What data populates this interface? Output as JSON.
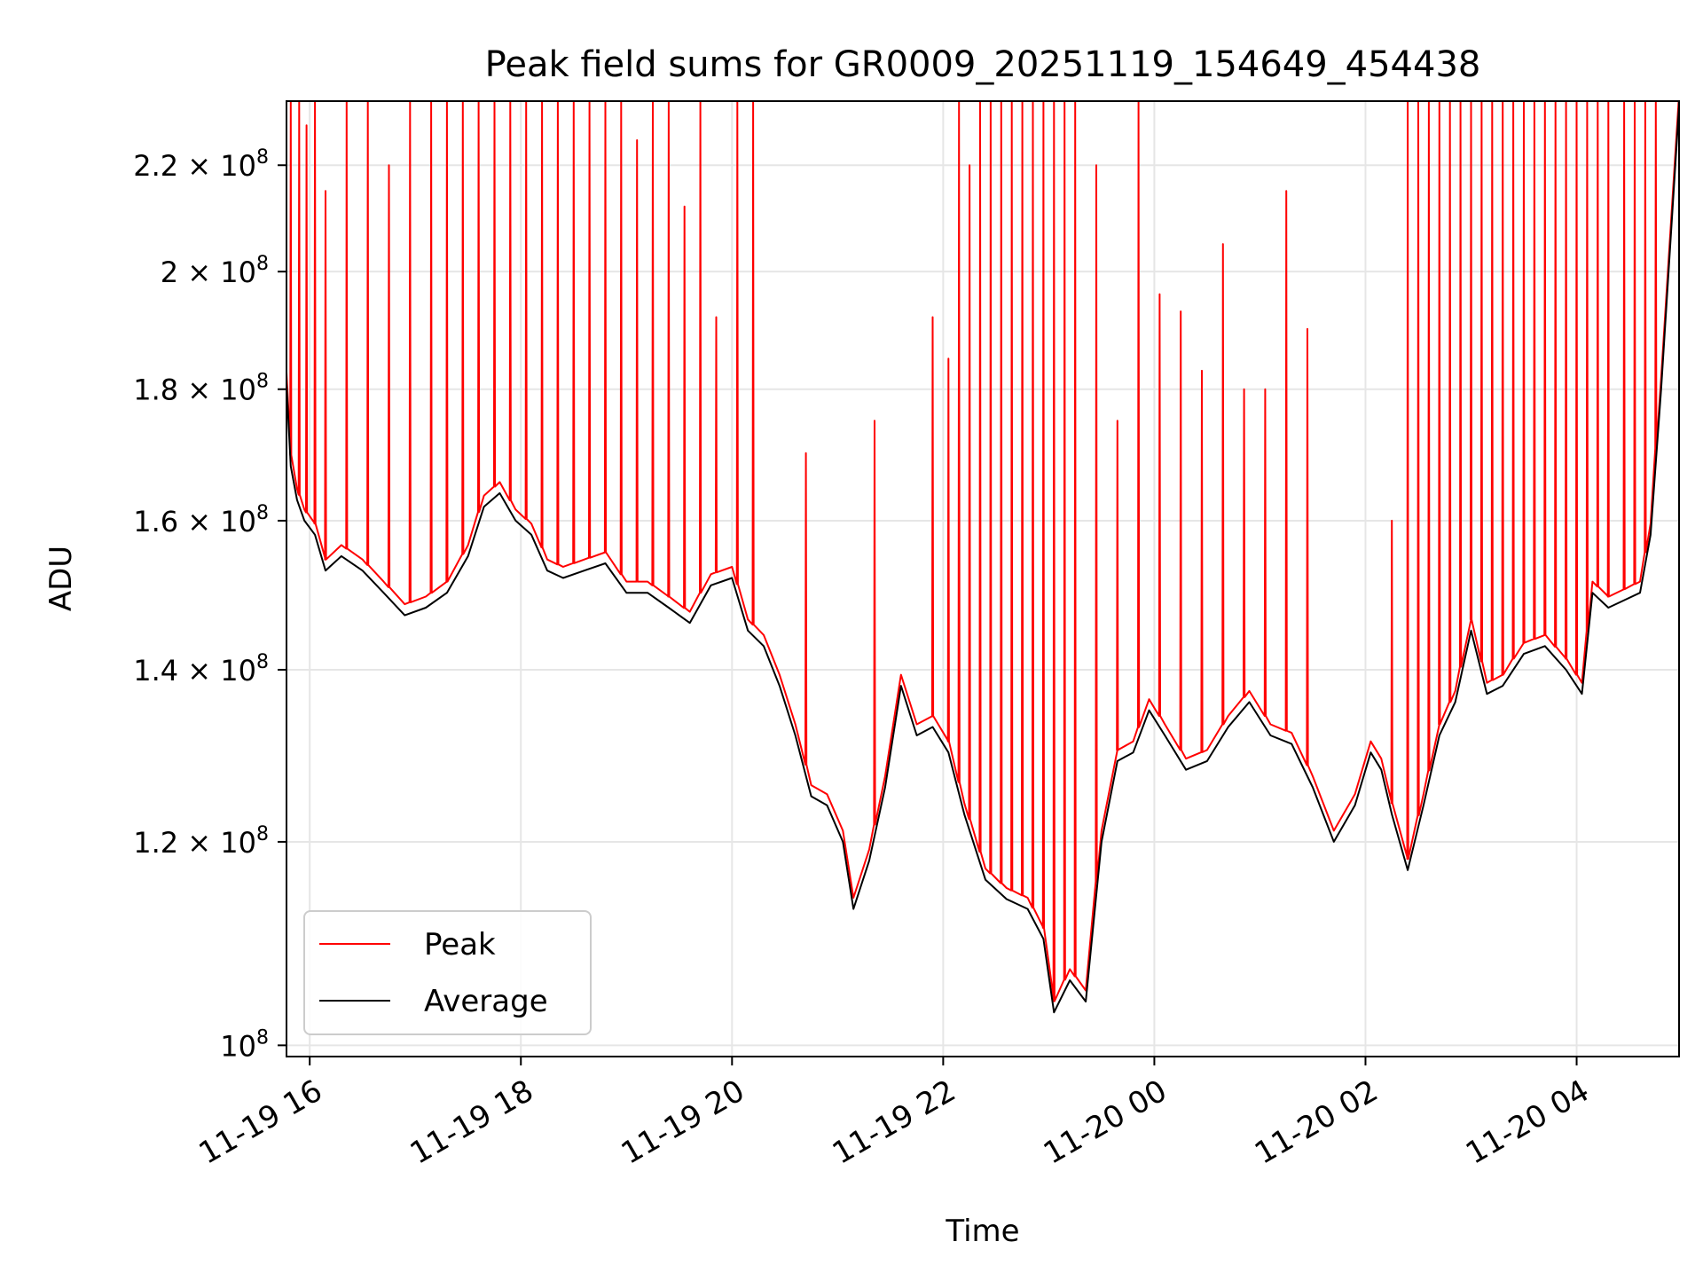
{
  "chart_data": {
    "type": "line",
    "title": "Peak field sums for GR0009_20251119_154649_454438",
    "xlabel": "Time",
    "ylabel": "ADU",
    "yscale": "log",
    "grid": true,
    "xlim_hours": [
      15.78,
      28.97
    ],
    "ylim": [
      99000000,
      233000000
    ],
    "x_ticks": [
      {
        "hour": 16,
        "label": "11-19 16"
      },
      {
        "hour": 18,
        "label": "11-19 18"
      },
      {
        "hour": 20,
        "label": "11-19 20"
      },
      {
        "hour": 22,
        "label": "11-19 22"
      },
      {
        "hour": 24,
        "label": "11-20 00"
      },
      {
        "hour": 26,
        "label": "11-20 02"
      },
      {
        "hour": 28,
        "label": "11-20 04"
      }
    ],
    "y_ticks": [
      {
        "value": 100000000,
        "mantissa": "",
        "exp": "8",
        "label": "10^8"
      },
      {
        "value": 120000000,
        "mantissa": "1.2",
        "exp": "8",
        "label": "1.2 × 10^8"
      },
      {
        "value": 140000000,
        "mantissa": "1.4",
        "exp": "8",
        "label": "1.4 × 10^8"
      },
      {
        "value": 160000000,
        "mantissa": "1.6",
        "exp": "8",
        "label": "1.6 × 10^8"
      },
      {
        "value": 180000000,
        "mantissa": "1.8",
        "exp": "8",
        "label": "1.8 × 10^8"
      },
      {
        "value": 200000000,
        "mantissa": "2",
        "exp": "8",
        "label": "2 × 10^8"
      },
      {
        "value": 220000000,
        "mantissa": "2.2",
        "exp": "8",
        "label": "2.2 × 10^8"
      }
    ],
    "legend": {
      "placement": "lower-left",
      "entries": [
        {
          "name": "Peak",
          "color": "#ff0000"
        },
        {
          "name": "Average",
          "color": "#000000"
        }
      ]
    },
    "series": [
      {
        "name": "Average",
        "color": "#000000",
        "x_hours": [
          15.78,
          15.82,
          15.88,
          15.95,
          16.05,
          16.15,
          16.3,
          16.5,
          16.7,
          16.9,
          17.1,
          17.3,
          17.5,
          17.65,
          17.8,
          17.95,
          18.1,
          18.25,
          18.4,
          18.6,
          18.8,
          19.0,
          19.2,
          19.4,
          19.6,
          19.8,
          20.0,
          20.15,
          20.3,
          20.45,
          20.6,
          20.75,
          20.9,
          21.05,
          21.15,
          21.3,
          21.45,
          21.6,
          21.75,
          21.9,
          22.05,
          22.2,
          22.4,
          22.6,
          22.8,
          22.95,
          23.05,
          23.2,
          23.35,
          23.5,
          23.65,
          23.8,
          23.95,
          24.1,
          24.3,
          24.5,
          24.7,
          24.9,
          25.1,
          25.3,
          25.5,
          25.7,
          25.9,
          26.05,
          26.15,
          26.25,
          26.4,
          26.55,
          26.7,
          26.85,
          27.0,
          27.15,
          27.3,
          27.5,
          27.7,
          27.9,
          28.05,
          28.15,
          28.3,
          28.45,
          28.6,
          28.7,
          28.8,
          28.97
        ],
        "y": [
          181000000,
          168000000,
          163000000,
          160000000,
          158000000,
          153000000,
          155000000,
          153000000,
          150000000,
          147000000,
          148000000,
          150000000,
          155000000,
          162000000,
          164000000,
          160000000,
          158000000,
          153000000,
          152000000,
          153000000,
          154000000,
          150000000,
          150000000,
          148000000,
          146000000,
          151000000,
          152000000,
          145000000,
          143000000,
          138000000,
          132000000,
          125000000,
          124000000,
          120000000,
          113000000,
          118000000,
          126000000,
          138000000,
          132000000,
          133000000,
          130000000,
          123000000,
          116000000,
          114000000,
          113000000,
          110000000,
          103000000,
          106000000,
          104000000,
          120000000,
          129000000,
          130000000,
          135000000,
          132000000,
          128000000,
          129000000,
          133000000,
          136000000,
          132000000,
          131000000,
          126000000,
          120000000,
          124000000,
          130000000,
          128000000,
          123000000,
          117000000,
          124000000,
          132000000,
          136000000,
          145000000,
          137000000,
          138000000,
          142000000,
          143000000,
          140000000,
          137000000,
          150000000,
          148000000,
          149000000,
          150000000,
          158000000,
          180000000,
          232000000
        ]
      },
      {
        "name": "Peak",
        "color": "#ff0000",
        "x_hours": [
          15.82,
          15.9,
          15.97,
          16.05,
          16.15,
          16.35,
          16.55,
          16.75,
          16.95,
          17.15,
          17.3,
          17.45,
          17.6,
          17.75,
          17.9,
          18.05,
          18.2,
          18.35,
          18.5,
          18.65,
          18.8,
          18.95,
          19.1,
          19.25,
          19.4,
          19.55,
          19.7,
          19.85,
          20.05,
          20.2,
          20.7,
          21.35,
          21.9,
          22.05,
          22.15,
          22.25,
          22.35,
          22.45,
          22.55,
          22.65,
          22.75,
          22.85,
          22.95,
          23.05,
          23.15,
          23.25,
          23.45,
          23.65,
          23.85,
          24.05,
          24.25,
          24.45,
          24.65,
          24.85,
          25.05,
          25.25,
          25.45,
          26.25,
          26.4,
          26.5,
          26.6,
          26.7,
          26.8,
          26.9,
          27.0,
          27.1,
          27.2,
          27.3,
          27.4,
          27.5,
          27.6,
          27.7,
          27.8,
          27.9,
          28.0,
          28.1,
          28.2,
          28.3,
          28.45,
          28.55,
          28.65,
          28.75
        ],
        "y": [
          233000000,
          233000000,
          228000000,
          233000000,
          215000000,
          233000000,
          233000000,
          220000000,
          233000000,
          233000000,
          233000000,
          233000000,
          233000000,
          233000000,
          233000000,
          233000000,
          233000000,
          233000000,
          233000000,
          233000000,
          233000000,
          233000000,
          225000000,
          233000000,
          233000000,
          212000000,
          233000000,
          192000000,
          233000000,
          233000000,
          170000000,
          175000000,
          192000000,
          185000000,
          233000000,
          220000000,
          233000000,
          233000000,
          233000000,
          233000000,
          233000000,
          233000000,
          233000000,
          233000000,
          233000000,
          233000000,
          220000000,
          175000000,
          233000000,
          196000000,
          193000000,
          183000000,
          205000000,
          180000000,
          180000000,
          215000000,
          190000000,
          160000000,
          233000000,
          233000000,
          233000000,
          233000000,
          233000000,
          233000000,
          233000000,
          233000000,
          233000000,
          233000000,
          233000000,
          233000000,
          233000000,
          233000000,
          233000000,
          233000000,
          233000000,
          233000000,
          233000000,
          233000000,
          233000000,
          233000000,
          233000000,
          233000000
        ]
      }
    ]
  }
}
